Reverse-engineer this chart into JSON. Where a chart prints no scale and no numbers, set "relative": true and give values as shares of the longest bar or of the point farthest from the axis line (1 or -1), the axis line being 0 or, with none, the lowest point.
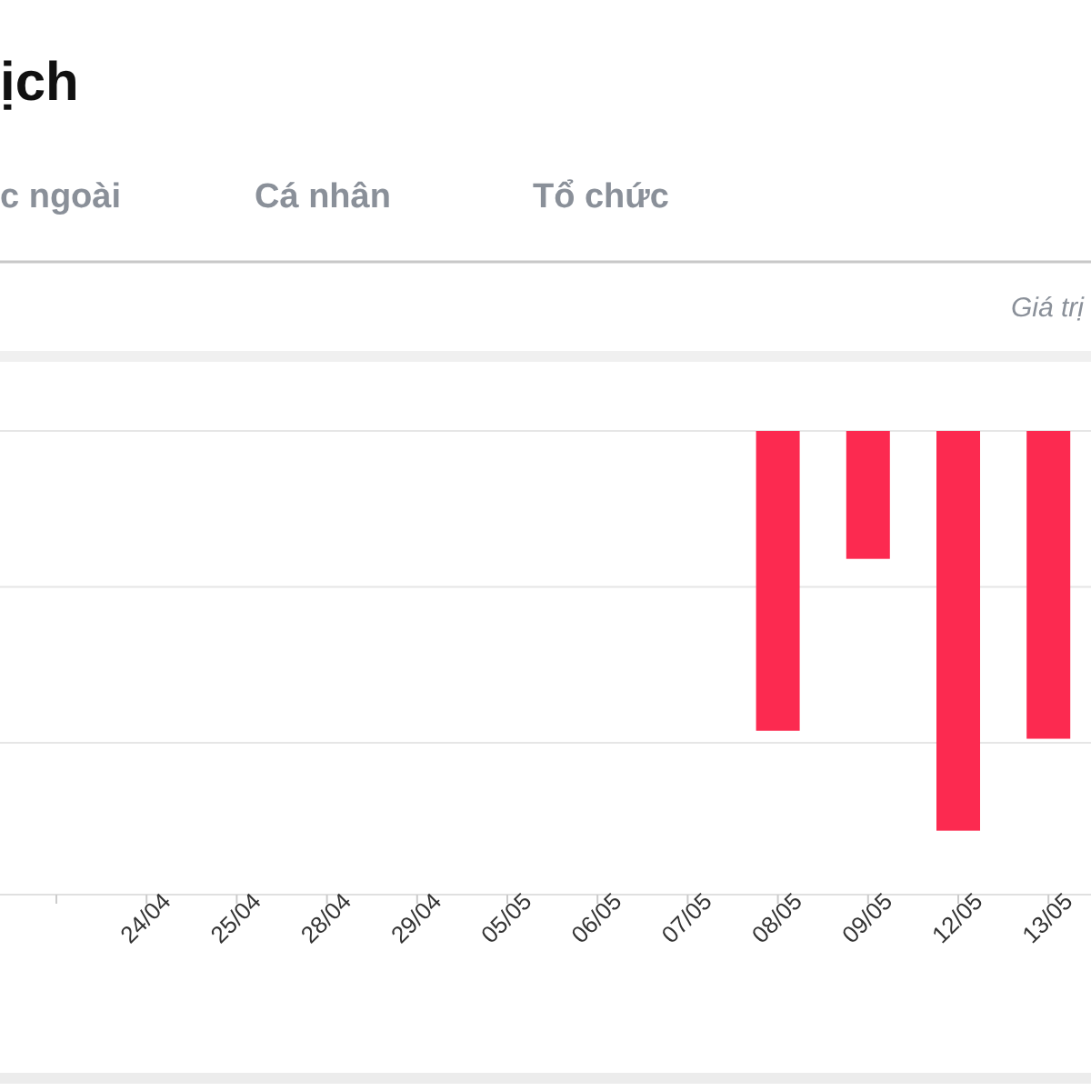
{
  "chart_data": {
    "type": "bar",
    "title": "ịch",
    "annotations": [
      "c ngoài",
      "Cá nhân",
      "Tổ chức",
      "Giá trị"
    ],
    "categories": [
      null,
      "24/04",
      "25/04",
      "28/04",
      "29/04",
      "05/05",
      "06/05",
      "07/05",
      "08/05",
      "09/05",
      "12/05",
      "13/05",
      null
    ],
    "values": [
      null,
      null,
      null,
      null,
      null,
      null,
      null,
      null,
      -0.75,
      -0.32,
      -1,
      -0.77,
      null
    ],
    "color": "#fc2a50",
    "relative": true,
    "ref_lines": [
      {
        "axis": "y",
        "value": -0.39,
        "color": "#e6e6e6"
      },
      {
        "axis": "y",
        "value": -0.78,
        "color": "#e6e6e6"
      }
    ]
  }
}
